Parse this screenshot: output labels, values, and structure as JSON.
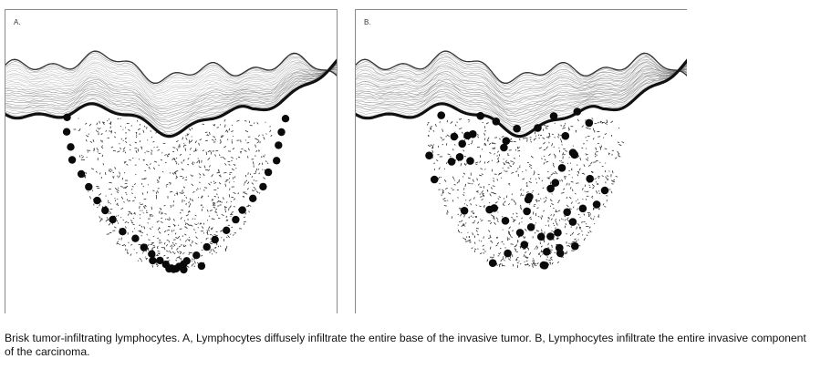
{
  "panels": [
    {
      "label": "A.",
      "lymphocyte_pattern": "peripheral-base"
    },
    {
      "label": "B.",
      "lymphocyte_pattern": "diffuse-throughout"
    }
  ],
  "caption": "Brisk tumor-infiltrating lymphocytes. A, Lymphocytes diffusely infiltrate the entire base of the invasive tumor. B, Lymphocytes infiltrate the entire invasive component of the carcinoma.",
  "colors": {
    "ink": "#111111",
    "frame": "#8a8a8a",
    "background": "#ffffff"
  }
}
